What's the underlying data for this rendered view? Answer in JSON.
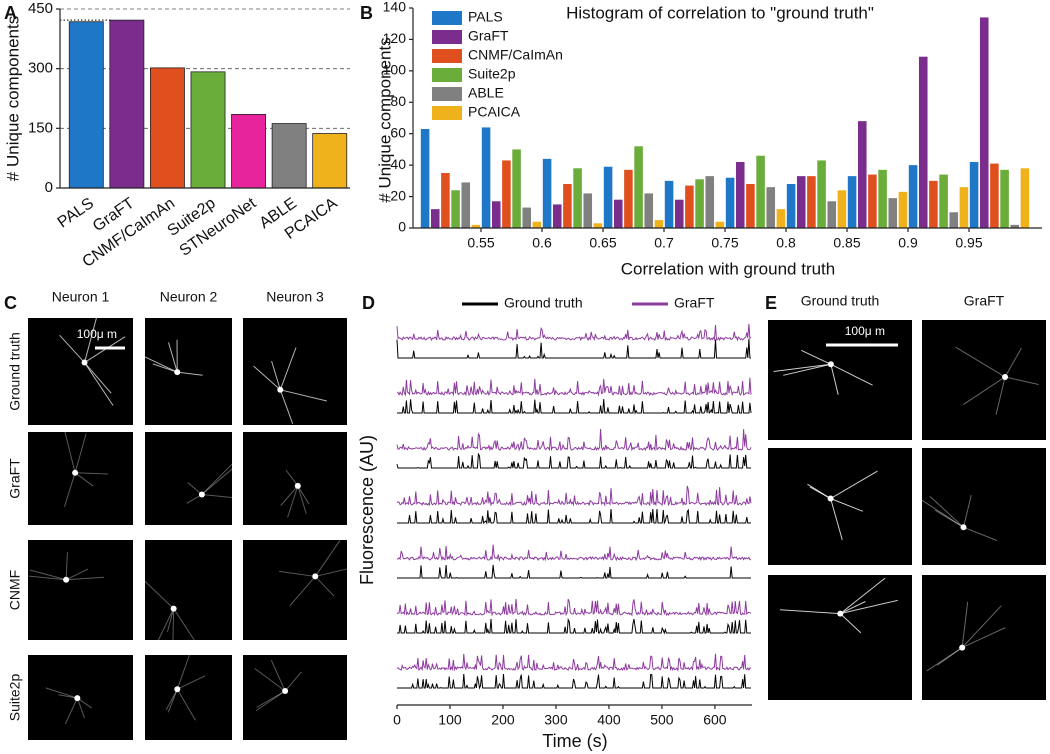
{
  "chart_data": [
    {
      "type": "bar",
      "panel": "A",
      "ylabel": "# Unique components",
      "categories": [
        "PALS",
        "GraFT",
        "CNMF/CaImAn",
        "Suite2p",
        "STNeuroNet",
        "ABLE",
        "PCAICA"
      ],
      "values": [
        418,
        422,
        302,
        292,
        185,
        162,
        137
      ],
      "colors": [
        "#1f77c8",
        "#7b2d8e",
        "#e0501e",
        "#6aad3a",
        "#e8249c",
        "#808080",
        "#efb21c"
      ],
      "ylim": [
        0,
        450
      ],
      "yticks": [
        0,
        150,
        300,
        450
      ],
      "grid": true
    },
    {
      "type": "histogram",
      "panel": "B",
      "title": "Histogram of correlation to \"ground truth\"",
      "xlabel": "Correlation with ground truth",
      "ylabel": "# Unique components",
      "bins": [
        0.5,
        0.55,
        0.6,
        0.65,
        0.7,
        0.75,
        0.8,
        0.85,
        0.9,
        0.95,
        1.0
      ],
      "series": [
        {
          "name": "PALS",
          "color": "#1f77c8",
          "values": [
            63,
            64,
            44,
            39,
            30,
            32,
            28,
            33,
            40,
            42
          ]
        },
        {
          "name": "GraFT",
          "color": "#7b2d8e",
          "values": [
            12,
            17,
            15,
            18,
            18,
            42,
            33,
            68,
            109,
            134
          ]
        },
        {
          "name": "CNMF/CaImAn",
          "color": "#e0501e",
          "values": [
            35,
            43,
            28,
            37,
            27,
            28,
            33,
            34,
            30,
            41
          ]
        },
        {
          "name": "Suite2p",
          "color": "#6aad3a",
          "values": [
            24,
            50,
            38,
            52,
            31,
            46,
            43,
            37,
            34,
            37
          ]
        },
        {
          "name": "ABLE",
          "color": "#808080",
          "values": [
            29,
            13,
            22,
            22,
            33,
            26,
            17,
            19,
            10,
            2
          ]
        },
        {
          "name": "PCAICA",
          "color": "#efb21c",
          "values": [
            2,
            4,
            3,
            5,
            4,
            12,
            24,
            23,
            26,
            38
          ]
        }
      ],
      "xlim": [
        0.5,
        1.0
      ],
      "xticks": [
        0.55,
        0.6,
        0.65,
        0.7,
        0.75,
        0.8,
        0.85,
        0.9,
        0.95
      ],
      "ylim": [
        0,
        140
      ],
      "yticks": [
        0,
        20,
        40,
        60,
        80,
        100,
        120,
        140
      ],
      "legend": "upper left"
    },
    {
      "type": "trace",
      "panel": "D",
      "xlabel": "Time (s)",
      "ylabel": "Fluorescence (AU)",
      "series": [
        {
          "name": "Ground truth",
          "color": "#000000"
        },
        {
          "name": "GraFT",
          "color": "#8e3ba0"
        }
      ],
      "xlim": [
        0,
        670
      ],
      "xticks": [
        0,
        100,
        200,
        300,
        400,
        500,
        600
      ]
    }
  ],
  "panel_c": {
    "panel": "C",
    "columns": [
      "Neuron 1",
      "Neuron 2",
      "Neuron 3"
    ],
    "rows": [
      "Ground truth",
      "GraFT",
      "CNMF",
      "Suite2p"
    ],
    "scale": "100μ m"
  },
  "panel_e": {
    "panel": "E",
    "columns": [
      "Ground truth",
      "GraFT"
    ],
    "scale": "100μ m"
  }
}
